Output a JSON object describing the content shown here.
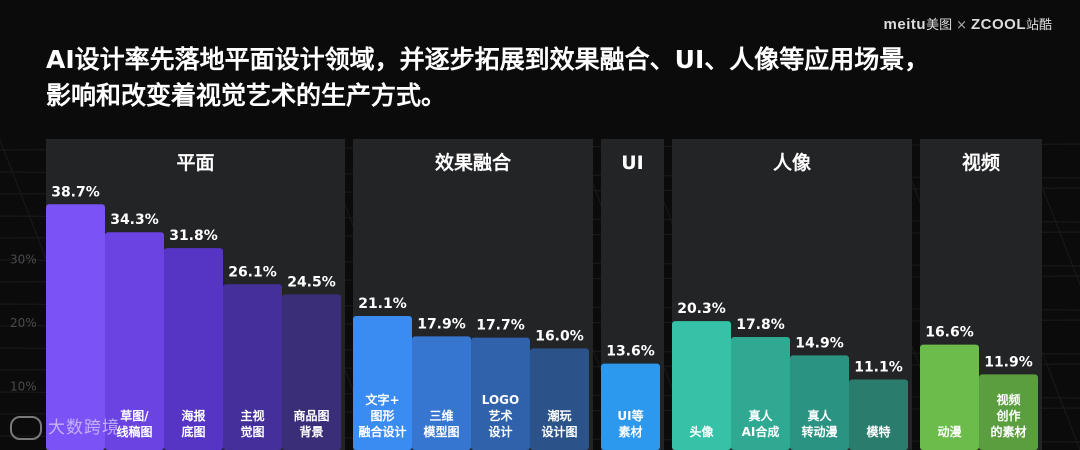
{
  "brand": {
    "meitu_text": "meitu",
    "meitu_cn": "美图",
    "times": "×",
    "zcool_text": "ZCOOL",
    "zcool_cn": "站酷"
  },
  "headline": {
    "line1": "AI设计率先落地平面设计领域，并逐步拓展到效果融合、UI、人像等应用场景，",
    "line2": "影响和改变着视觉艺术的生产方式。"
  },
  "watermark": {
    "text": "大数跨境"
  },
  "colors": {
    "panel": "#232426",
    "平面": [
      "#7b52f5",
      "#6a43e2",
      "#5634c4",
      "#45309a",
      "#3a2e78"
    ],
    "效果融合": [
      "#3b8cf2",
      "#3676d0",
      "#2f62ab",
      "#2b5289"
    ],
    "UI": [
      "#2c98ee"
    ],
    "人像": [
      "#35c2a6",
      "#30a993",
      "#2b9381",
      "#2a7d6d"
    ],
    "视频": [
      "#6bbc4a",
      "#5a9e3f"
    ]
  },
  "chart_data": {
    "type": "bar",
    "ylabel": "",
    "yticks": [
      "10%",
      "20%",
      "30%"
    ],
    "ytick_values": [
      10,
      20,
      30
    ],
    "ylim": [
      0,
      45
    ],
    "grid": false,
    "legend": "none",
    "groups": [
      {
        "name": "平面",
        "bars": [
          {
            "label": "",
            "value": 38.7,
            "value_label": "38.7%"
          },
          {
            "label": "草图/\n线稿图",
            "value": 34.3,
            "value_label": "34.3%"
          },
          {
            "label": "海报\n底图",
            "value": 31.8,
            "value_label": "31.8%"
          },
          {
            "label": "主视\n觉图",
            "value": 26.1,
            "value_label": "26.1%"
          },
          {
            "label": "商品图\n背景",
            "value": 24.5,
            "value_label": "24.5%"
          }
        ]
      },
      {
        "name": "效果融合",
        "bars": [
          {
            "label": "文字+\n图形\n融合设计",
            "value": 21.1,
            "value_label": "21.1%"
          },
          {
            "label": "三维\n模型图",
            "value": 17.9,
            "value_label": "17.9%"
          },
          {
            "label": "LOGO\n艺术\n设计",
            "value": 17.7,
            "value_label": "17.7%"
          },
          {
            "label": "潮玩\n设计图",
            "value": 16.0,
            "value_label": "16.0%"
          }
        ]
      },
      {
        "name": "UI",
        "bars": [
          {
            "label": "UI等\n素材",
            "value": 13.6,
            "value_label": "13.6%"
          }
        ]
      },
      {
        "name": "人像",
        "bars": [
          {
            "label": "头像",
            "value": 20.3,
            "value_label": "20.3%"
          },
          {
            "label": "真人\nAI合成",
            "value": 17.8,
            "value_label": "17.8%"
          },
          {
            "label": "真人\n转动漫",
            "value": 14.9,
            "value_label": "14.9%"
          },
          {
            "label": "模特",
            "value": 11.1,
            "value_label": "11.1%"
          }
        ]
      },
      {
        "name": "视频",
        "bars": [
          {
            "label": "动漫",
            "value": 16.6,
            "value_label": "16.6%"
          },
          {
            "label": "视频\n创作\n的素材",
            "value": 11.9,
            "value_label": "11.9%"
          }
        ]
      }
    ]
  }
}
